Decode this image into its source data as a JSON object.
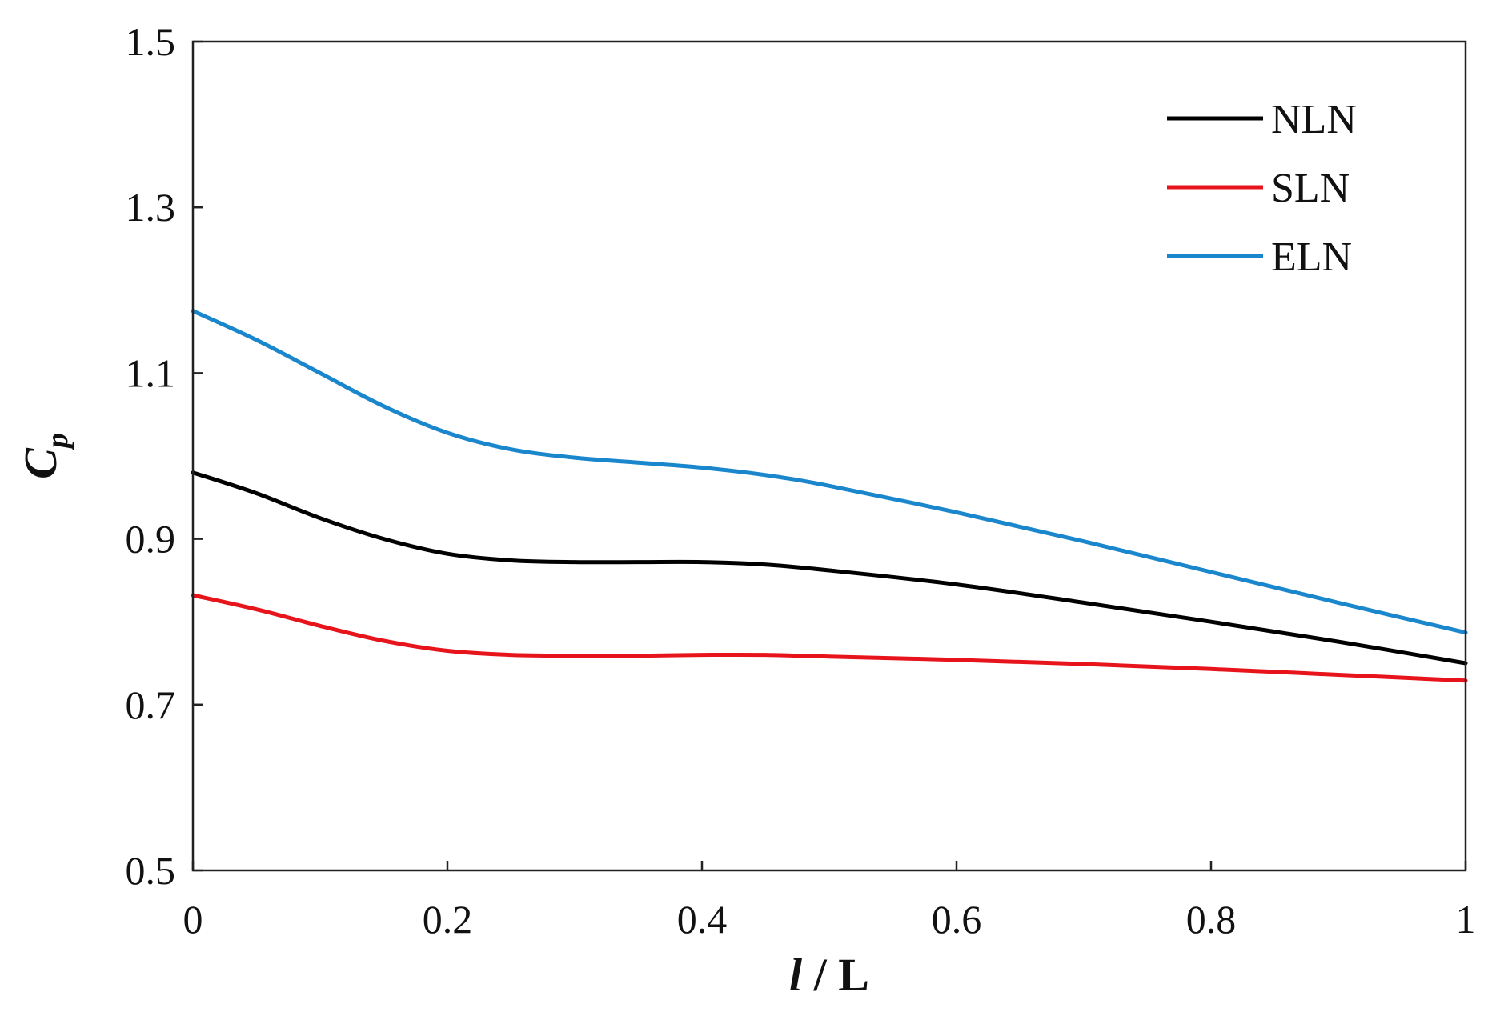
{
  "chart_data": {
    "type": "line",
    "xlabel": {
      "var": "l",
      "rest": " / L"
    },
    "ylabel": {
      "base": "C",
      "sub": "p"
    },
    "xlim": [
      0,
      1
    ],
    "ylim": [
      0.5,
      1.5
    ],
    "x_ticks": [
      0,
      0.2,
      0.4,
      0.6,
      0.8,
      1
    ],
    "x_tick_labels": [
      "0",
      "0.2",
      "0.4",
      "0.6",
      "0.8",
      "1"
    ],
    "y_ticks": [
      0.5,
      0.7,
      0.9,
      1.1,
      1.3,
      1.5
    ],
    "y_tick_labels": [
      "0.5",
      "0.7",
      "0.9",
      "1.1",
      "1.3",
      "1.5"
    ],
    "grid": false,
    "legend_position": "top-right",
    "series": [
      {
        "name": "NLN",
        "color": "#000000",
        "x": [
          0,
          0.05,
          0.1,
          0.15,
          0.2,
          0.25,
          0.3,
          0.35,
          0.4,
          0.45,
          0.5,
          0.6,
          0.7,
          0.8,
          0.9,
          1.0
        ],
        "y": [
          0.98,
          0.955,
          0.925,
          0.9,
          0.882,
          0.874,
          0.872,
          0.872,
          0.872,
          0.869,
          0.862,
          0.845,
          0.823,
          0.8,
          0.776,
          0.75
        ]
      },
      {
        "name": "SLN",
        "color": "#e8141c",
        "x": [
          0,
          0.05,
          0.1,
          0.15,
          0.2,
          0.25,
          0.3,
          0.35,
          0.4,
          0.45,
          0.5,
          0.6,
          0.7,
          0.8,
          0.9,
          1.0
        ],
        "y": [
          0.832,
          0.815,
          0.795,
          0.777,
          0.765,
          0.76,
          0.759,
          0.759,
          0.76,
          0.76,
          0.758,
          0.754,
          0.749,
          0.743,
          0.736,
          0.729
        ]
      },
      {
        "name": "ELN",
        "color": "#1a86cc",
        "x": [
          0,
          0.05,
          0.1,
          0.15,
          0.2,
          0.25,
          0.3,
          0.35,
          0.4,
          0.45,
          0.5,
          0.6,
          0.7,
          0.8,
          0.9,
          1.0
        ],
        "y": [
          1.175,
          1.14,
          1.1,
          1.06,
          1.028,
          1.008,
          0.998,
          0.992,
          0.986,
          0.977,
          0.964,
          0.932,
          0.897,
          0.86,
          0.823,
          0.787
        ]
      }
    ]
  }
}
